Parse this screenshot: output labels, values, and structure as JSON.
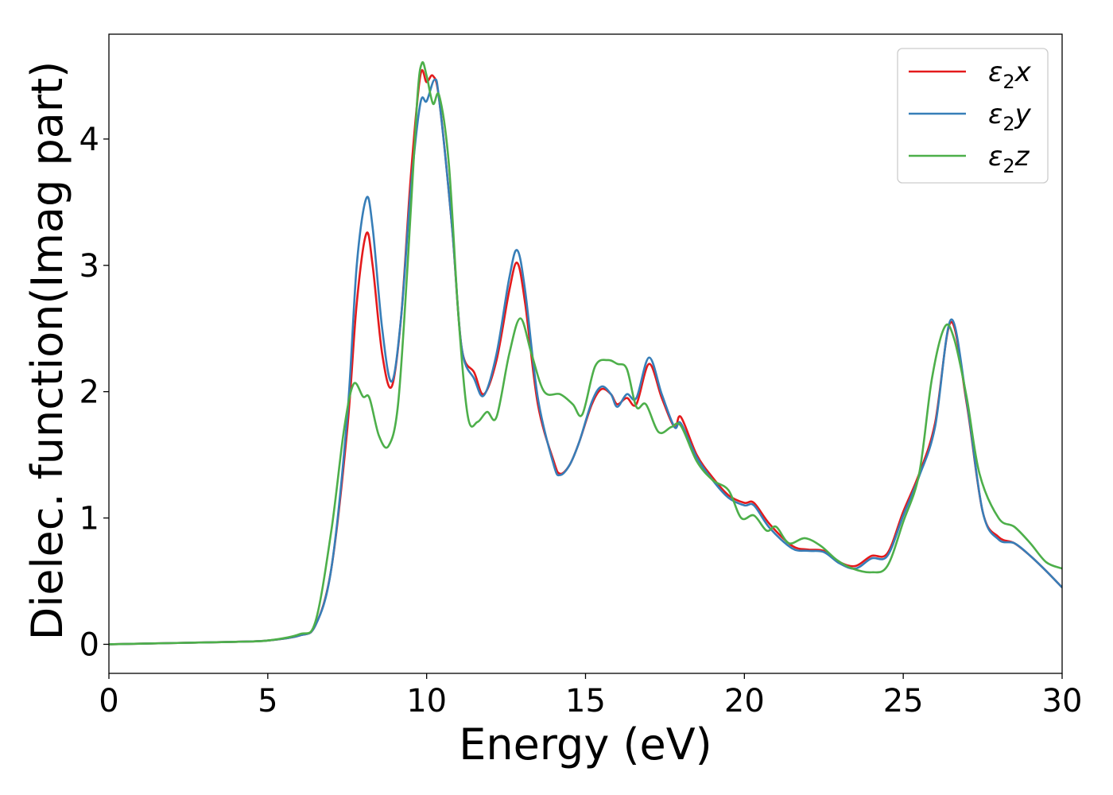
{
  "chart_data": {
    "type": "line",
    "xlabel": "Energy (eV)",
    "ylabel": "Dielec. function(Imag part)",
    "xlim": [
      0,
      30
    ],
    "ylim": [
      -0.23,
      4.83
    ],
    "xticks": [
      0,
      5,
      10,
      15,
      20,
      25,
      30
    ],
    "xtick_labels": [
      "0",
      "5",
      "10",
      "15",
      "20",
      "25",
      "30"
    ],
    "yticks": [
      0,
      1,
      2,
      3,
      4
    ],
    "ytick_labels": [
      "0",
      "1",
      "2",
      "3",
      "4"
    ],
    "grid": false,
    "legend_position": "top-right",
    "series": [
      {
        "name": "ε₂x",
        "legend_base": "ε",
        "legend_sub": "2",
        "legend_suffix": "x",
        "color": "#e41a1c",
        "points": [
          [
            0,
            0
          ],
          [
            2,
            0.01
          ],
          [
            4,
            0.02
          ],
          [
            5,
            0.03
          ],
          [
            6,
            0.07
          ],
          [
            6.5,
            0.15
          ],
          [
            7,
            0.6
          ],
          [
            7.5,
            1.7
          ],
          [
            7.8,
            2.7
          ],
          [
            8.1,
            3.25
          ],
          [
            8.3,
            3.0
          ],
          [
            8.6,
            2.3
          ],
          [
            8.9,
            2.04
          ],
          [
            9.2,
            2.6
          ],
          [
            9.5,
            3.7
          ],
          [
            9.8,
            4.5
          ],
          [
            10.0,
            4.45
          ],
          [
            10.2,
            4.5
          ],
          [
            10.4,
            4.3
          ],
          [
            10.8,
            3.3
          ],
          [
            11.1,
            2.35
          ],
          [
            11.5,
            2.15
          ],
          [
            11.8,
            1.98
          ],
          [
            12.2,
            2.25
          ],
          [
            12.6,
            2.8
          ],
          [
            12.85,
            3.02
          ],
          [
            13.1,
            2.7
          ],
          [
            13.5,
            1.9
          ],
          [
            14.0,
            1.45
          ],
          [
            14.2,
            1.35
          ],
          [
            14.5,
            1.42
          ],
          [
            14.8,
            1.6
          ],
          [
            15.2,
            1.9
          ],
          [
            15.5,
            2.02
          ],
          [
            15.8,
            1.98
          ],
          [
            16.0,
            1.9
          ],
          [
            16.3,
            1.95
          ],
          [
            16.6,
            1.9
          ],
          [
            17.0,
            2.22
          ],
          [
            17.4,
            1.95
          ],
          [
            17.8,
            1.72
          ],
          [
            18.0,
            1.8
          ],
          [
            18.5,
            1.5
          ],
          [
            19.0,
            1.32
          ],
          [
            19.5,
            1.18
          ],
          [
            20.0,
            1.12
          ],
          [
            20.3,
            1.12
          ],
          [
            20.8,
            0.95
          ],
          [
            21.5,
            0.78
          ],
          [
            22.0,
            0.75
          ],
          [
            22.5,
            0.74
          ],
          [
            23.0,
            0.65
          ],
          [
            23.5,
            0.62
          ],
          [
            24.0,
            0.7
          ],
          [
            24.5,
            0.72
          ],
          [
            25.0,
            1.05
          ],
          [
            25.5,
            1.35
          ],
          [
            26.0,
            1.75
          ],
          [
            26.5,
            2.55
          ],
          [
            27.0,
            1.9
          ],
          [
            27.5,
            1.05
          ],
          [
            28.0,
            0.85
          ],
          [
            28.5,
            0.8
          ],
          [
            29.0,
            0.7
          ],
          [
            29.5,
            0.58
          ],
          [
            30.0,
            0.45
          ]
        ]
      },
      {
        "name": "ε₂y",
        "legend_base": "ε",
        "legend_sub": "2",
        "legend_suffix": "y",
        "color": "#377eb8",
        "points": [
          [
            0,
            0
          ],
          [
            2,
            0.01
          ],
          [
            4,
            0.02
          ],
          [
            5,
            0.03
          ],
          [
            6,
            0.07
          ],
          [
            6.5,
            0.15
          ],
          [
            7,
            0.6
          ],
          [
            7.5,
            1.8
          ],
          [
            7.8,
            3.0
          ],
          [
            8.1,
            3.53
          ],
          [
            8.3,
            3.3
          ],
          [
            8.6,
            2.5
          ],
          [
            8.9,
            2.08
          ],
          [
            9.2,
            2.6
          ],
          [
            9.5,
            3.6
          ],
          [
            9.8,
            4.28
          ],
          [
            10.0,
            4.3
          ],
          [
            10.25,
            4.47
          ],
          [
            10.4,
            4.3
          ],
          [
            10.8,
            3.3
          ],
          [
            11.1,
            2.35
          ],
          [
            11.5,
            2.1
          ],
          [
            11.8,
            1.97
          ],
          [
            12.2,
            2.3
          ],
          [
            12.6,
            2.9
          ],
          [
            12.85,
            3.12
          ],
          [
            13.1,
            2.8
          ],
          [
            13.5,
            1.95
          ],
          [
            14.0,
            1.42
          ],
          [
            14.2,
            1.34
          ],
          [
            14.5,
            1.42
          ],
          [
            14.8,
            1.6
          ],
          [
            15.2,
            1.92
          ],
          [
            15.5,
            2.04
          ],
          [
            15.8,
            1.98
          ],
          [
            16.0,
            1.88
          ],
          [
            16.3,
            1.98
          ],
          [
            16.6,
            1.95
          ],
          [
            17.0,
            2.27
          ],
          [
            17.4,
            1.98
          ],
          [
            17.8,
            1.72
          ],
          [
            18.0,
            1.75
          ],
          [
            18.5,
            1.48
          ],
          [
            19.0,
            1.3
          ],
          [
            19.5,
            1.16
          ],
          [
            20.0,
            1.1
          ],
          [
            20.3,
            1.1
          ],
          [
            20.8,
            0.92
          ],
          [
            21.5,
            0.76
          ],
          [
            22.0,
            0.74
          ],
          [
            22.5,
            0.73
          ],
          [
            23.0,
            0.64
          ],
          [
            23.5,
            0.6
          ],
          [
            24.0,
            0.68
          ],
          [
            24.5,
            0.7
          ],
          [
            25.0,
            1.02
          ],
          [
            25.5,
            1.33
          ],
          [
            26.0,
            1.72
          ],
          [
            26.5,
            2.57
          ],
          [
            27.0,
            1.92
          ],
          [
            27.5,
            1.05
          ],
          [
            28.0,
            0.83
          ],
          [
            28.5,
            0.8
          ],
          [
            29.0,
            0.7
          ],
          [
            29.5,
            0.58
          ],
          [
            30.0,
            0.45
          ]
        ]
      },
      {
        "name": "ε₂z",
        "legend_base": "ε",
        "legend_sub": "2",
        "legend_suffix": "z",
        "color": "#4daf4a",
        "points": [
          [
            0,
            0
          ],
          [
            2,
            0.01
          ],
          [
            4,
            0.02
          ],
          [
            5,
            0.03
          ],
          [
            6,
            0.08
          ],
          [
            6.5,
            0.18
          ],
          [
            7,
            0.9
          ],
          [
            7.4,
            1.7
          ],
          [
            7.7,
            2.06
          ],
          [
            8.0,
            1.96
          ],
          [
            8.2,
            1.95
          ],
          [
            8.5,
            1.65
          ],
          [
            8.8,
            1.57
          ],
          [
            9.1,
            1.9
          ],
          [
            9.4,
            3.0
          ],
          [
            9.7,
            4.3
          ],
          [
            9.85,
            4.6
          ],
          [
            10.0,
            4.5
          ],
          [
            10.2,
            4.28
          ],
          [
            10.4,
            4.34
          ],
          [
            10.7,
            3.8
          ],
          [
            11.0,
            2.6
          ],
          [
            11.3,
            1.8
          ],
          [
            11.6,
            1.76
          ],
          [
            11.9,
            1.84
          ],
          [
            12.2,
            1.8
          ],
          [
            12.6,
            2.3
          ],
          [
            12.95,
            2.58
          ],
          [
            13.3,
            2.3
          ],
          [
            13.7,
            2.0
          ],
          [
            14.2,
            1.98
          ],
          [
            14.6,
            1.9
          ],
          [
            14.9,
            1.82
          ],
          [
            15.3,
            2.2
          ],
          [
            15.7,
            2.25
          ],
          [
            16.0,
            2.22
          ],
          [
            16.3,
            2.18
          ],
          [
            16.6,
            1.88
          ],
          [
            16.9,
            1.9
          ],
          [
            17.3,
            1.68
          ],
          [
            17.7,
            1.72
          ],
          [
            18.0,
            1.73
          ],
          [
            18.5,
            1.45
          ],
          [
            19.0,
            1.3
          ],
          [
            19.5,
            1.22
          ],
          [
            19.9,
            1.0
          ],
          [
            20.3,
            1.02
          ],
          [
            20.7,
            0.9
          ],
          [
            21.0,
            0.93
          ],
          [
            21.4,
            0.8
          ],
          [
            21.9,
            0.84
          ],
          [
            22.4,
            0.78
          ],
          [
            22.9,
            0.67
          ],
          [
            23.4,
            0.6
          ],
          [
            24.0,
            0.57
          ],
          [
            24.5,
            0.62
          ],
          [
            25.0,
            0.97
          ],
          [
            25.5,
            1.35
          ],
          [
            25.9,
            2.1
          ],
          [
            26.3,
            2.51
          ],
          [
            26.6,
            2.42
          ],
          [
            27.0,
            1.95
          ],
          [
            27.4,
            1.35
          ],
          [
            28.0,
            1.0
          ],
          [
            28.5,
            0.93
          ],
          [
            29.0,
            0.8
          ],
          [
            29.5,
            0.65
          ],
          [
            30.0,
            0.6
          ]
        ]
      }
    ]
  }
}
